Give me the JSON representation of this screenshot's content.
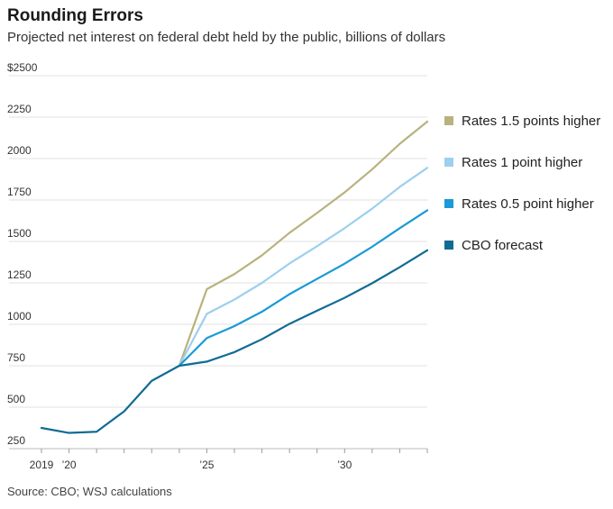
{
  "title": "Rounding Errors",
  "subtitle": "Projected net interest on federal debt held by the public, billions of dollars",
  "source": "Source: CBO; WSJ calculations",
  "chart_data": {
    "type": "line",
    "title": "Rounding Errors",
    "subtitle": "Projected net interest on federal debt held by the public, billions of dollars",
    "ylabel": "",
    "xlabel": "",
    "ylim": [
      250,
      2500
    ],
    "xlim": [
      2019,
      2033
    ],
    "y_ticks": [
      250,
      500,
      750,
      1000,
      1250,
      1500,
      1750,
      2000,
      2250,
      2500
    ],
    "y_tick_labels": [
      "250",
      "500",
      "750",
      "1000",
      "1250",
      "1500",
      "1750",
      "2000",
      "2250",
      "$2500"
    ],
    "x_ticks": [
      2019,
      2020,
      2021,
      2022,
      2023,
      2024,
      2025,
      2026,
      2027,
      2028,
      2029,
      2030,
      2031,
      2032,
      2033
    ],
    "x_tick_labels": [
      {
        "year": 2019,
        "label": "2019"
      },
      {
        "year": 2020,
        "label": "’20"
      },
      {
        "year": 2025,
        "label": "’25"
      },
      {
        "year": 2030,
        "label": "’30"
      }
    ],
    "grid": true,
    "legend_position": "right",
    "series": [
      {
        "name": "Rates 1.5 points higher",
        "color": "#b8b27e",
        "x": [
          2024,
          2025,
          2026,
          2027,
          2028,
          2029,
          2030,
          2031,
          2032,
          2033
        ],
        "values": [
          750,
          1212,
          1303,
          1416,
          1552,
          1672,
          1796,
          1935,
          2089,
          2223
        ]
      },
      {
        "name": "Rates 1 point higher",
        "color": "#9dcfee",
        "x": [
          2024,
          2025,
          2026,
          2027,
          2028,
          2029,
          2030,
          2031,
          2032,
          2033
        ],
        "values": [
          750,
          1063,
          1149,
          1250,
          1367,
          1471,
          1580,
          1698,
          1829,
          1944
        ]
      },
      {
        "name": "Rates 0.5 point higher",
        "color": "#1a9ad6",
        "x": [
          2024,
          2025,
          2026,
          2027,
          2028,
          2029,
          2030,
          2031,
          2032,
          2033
        ],
        "values": [
          750,
          917,
          989,
          1076,
          1182,
          1274,
          1366,
          1468,
          1580,
          1688
        ]
      },
      {
        "name": "CBO forecast",
        "color": "#116b94",
        "x": [
          2019,
          2020,
          2021,
          2022,
          2023,
          2024,
          2025,
          2026,
          2027,
          2028,
          2029,
          2030,
          2031,
          2032,
          2033
        ],
        "values": [
          375,
          345,
          352,
          475,
          659,
          750,
          775,
          832,
          910,
          1003,
          1082,
          1160,
          1248,
          1345,
          1447
        ]
      }
    ]
  }
}
